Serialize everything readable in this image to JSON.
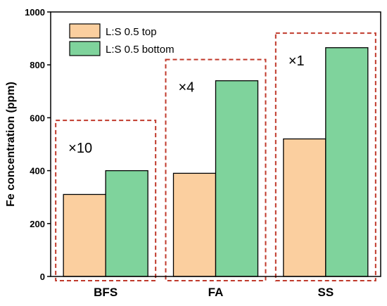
{
  "chart_data": {
    "type": "bar",
    "categories": [
      "BFS",
      "FA",
      "SS"
    ],
    "series": [
      {
        "name": "L:S 0.5 top",
        "values": [
          310,
          390,
          520
        ],
        "color": "#fbcf9f"
      },
      {
        "name": "L:S 0.5 bottom",
        "values": [
          400,
          740,
          865
        ],
        "color": "#7fd39c"
      }
    ],
    "ylabel": "Fe concentration (ppm)",
    "xlabel": "",
    "title": "",
    "ylim": [
      0,
      1000
    ],
    "yticks": [
      0,
      200,
      400,
      600,
      800,
      1000
    ],
    "legend_position": "top-left",
    "grid": false,
    "annotations": [
      {
        "category": "BFS",
        "text": "×10",
        "box_top": 590
      },
      {
        "category": "FA",
        "text": "×4",
        "box_top": 820
      },
      {
        "category": "SS",
        "text": "×1",
        "box_top": 920
      }
    ],
    "annotation_box_color": "#c0392b"
  }
}
